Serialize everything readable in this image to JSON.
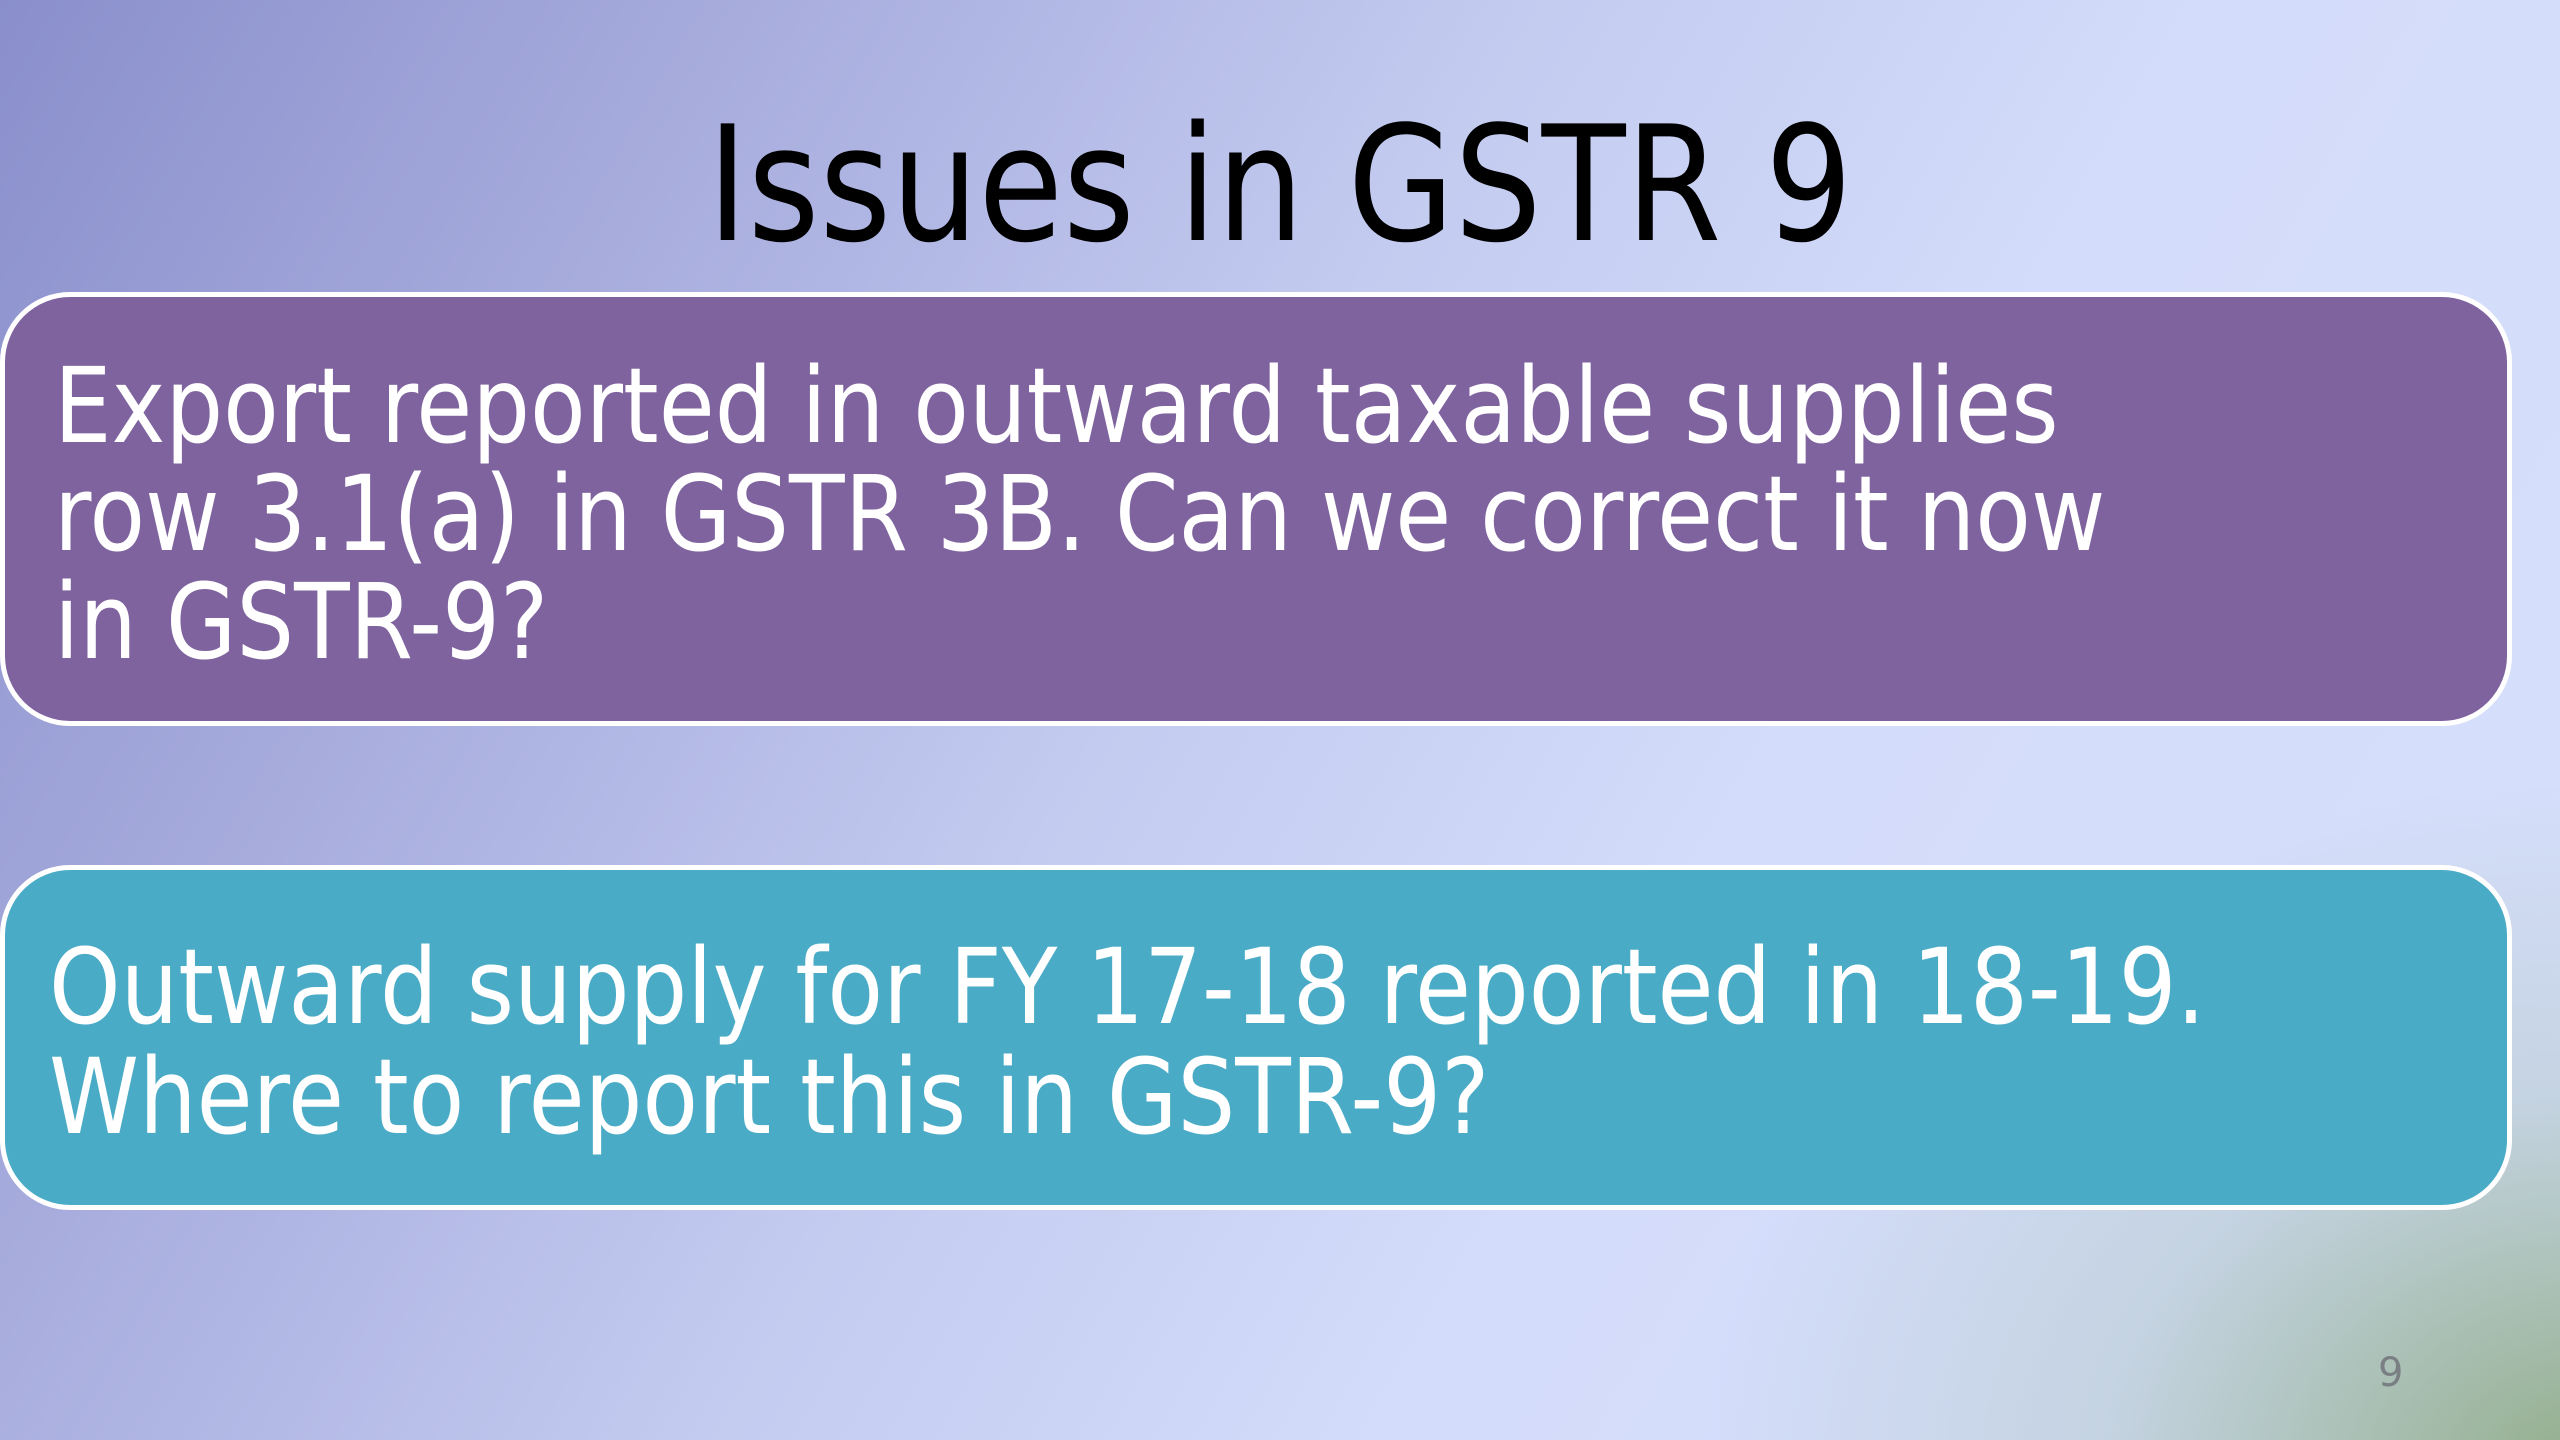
{
  "slide": {
    "title": "Issues in GSTR 9",
    "boxes": [
      {
        "lines": [
          "Export reported in outward taxable supplies",
          "row 3.1(a) in GSTR 3B. Can we correct it now",
          "in GSTR-9?"
        ],
        "color": "#7f639f"
      },
      {
        "lines": [
          "Outward supply for FY 17-18 reported in 18-19.",
          "Where to report this in GSTR-9?"
        ],
        "color": "#4aabc6"
      }
    ],
    "page_number": "9"
  }
}
